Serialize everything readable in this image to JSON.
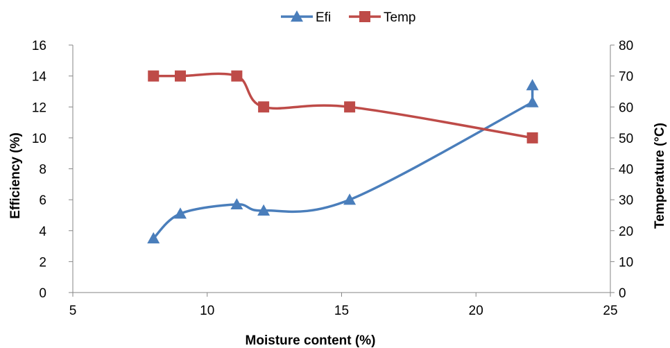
{
  "chart_data": {
    "type": "line",
    "xlabel": "Moisture content (%)",
    "ylabel_left": "Efficiency (%)",
    "ylabel_right": "Temperature (°C)",
    "xlim": [
      5,
      25
    ],
    "ylim_left": [
      0,
      16
    ],
    "ylim_right": [
      0,
      80
    ],
    "x_ticks": [
      "5",
      "10",
      "15",
      "20",
      "25"
    ],
    "y_left_ticks": [
      "0",
      "2",
      "4",
      "6",
      "8",
      "10",
      "12",
      "14",
      "16"
    ],
    "y_right_ticks": [
      "0",
      "10",
      "20",
      "30",
      "40",
      "50",
      "60",
      "70",
      "80"
    ],
    "legend_position": "top-center",
    "grid": false,
    "series": [
      {
        "name": "Efi",
        "axis": "left",
        "color": "#4a7ebb",
        "marker": "triangle",
        "smooth": true,
        "points": [
          {
            "x": 8.0,
            "y": 3.5
          },
          {
            "x": 9.0,
            "y": 5.1
          },
          {
            "x": 11.1,
            "y": 5.7
          },
          {
            "x": 12.1,
            "y": 5.3
          },
          {
            "x": 15.3,
            "y": 6.0
          },
          {
            "x": 22.1,
            "y": 12.3
          },
          {
            "x": 22.1,
            "y": 13.4
          }
        ]
      },
      {
        "name": "Temp",
        "axis": "right",
        "color": "#be4b48",
        "marker": "square",
        "smooth": true,
        "points": [
          {
            "x": 8.0,
            "y": 70
          },
          {
            "x": 9.0,
            "y": 70
          },
          {
            "x": 11.1,
            "y": 70
          },
          {
            "x": 12.1,
            "y": 60
          },
          {
            "x": 15.3,
            "y": 60
          },
          {
            "x": 22.1,
            "y": 50
          }
        ]
      }
    ]
  }
}
